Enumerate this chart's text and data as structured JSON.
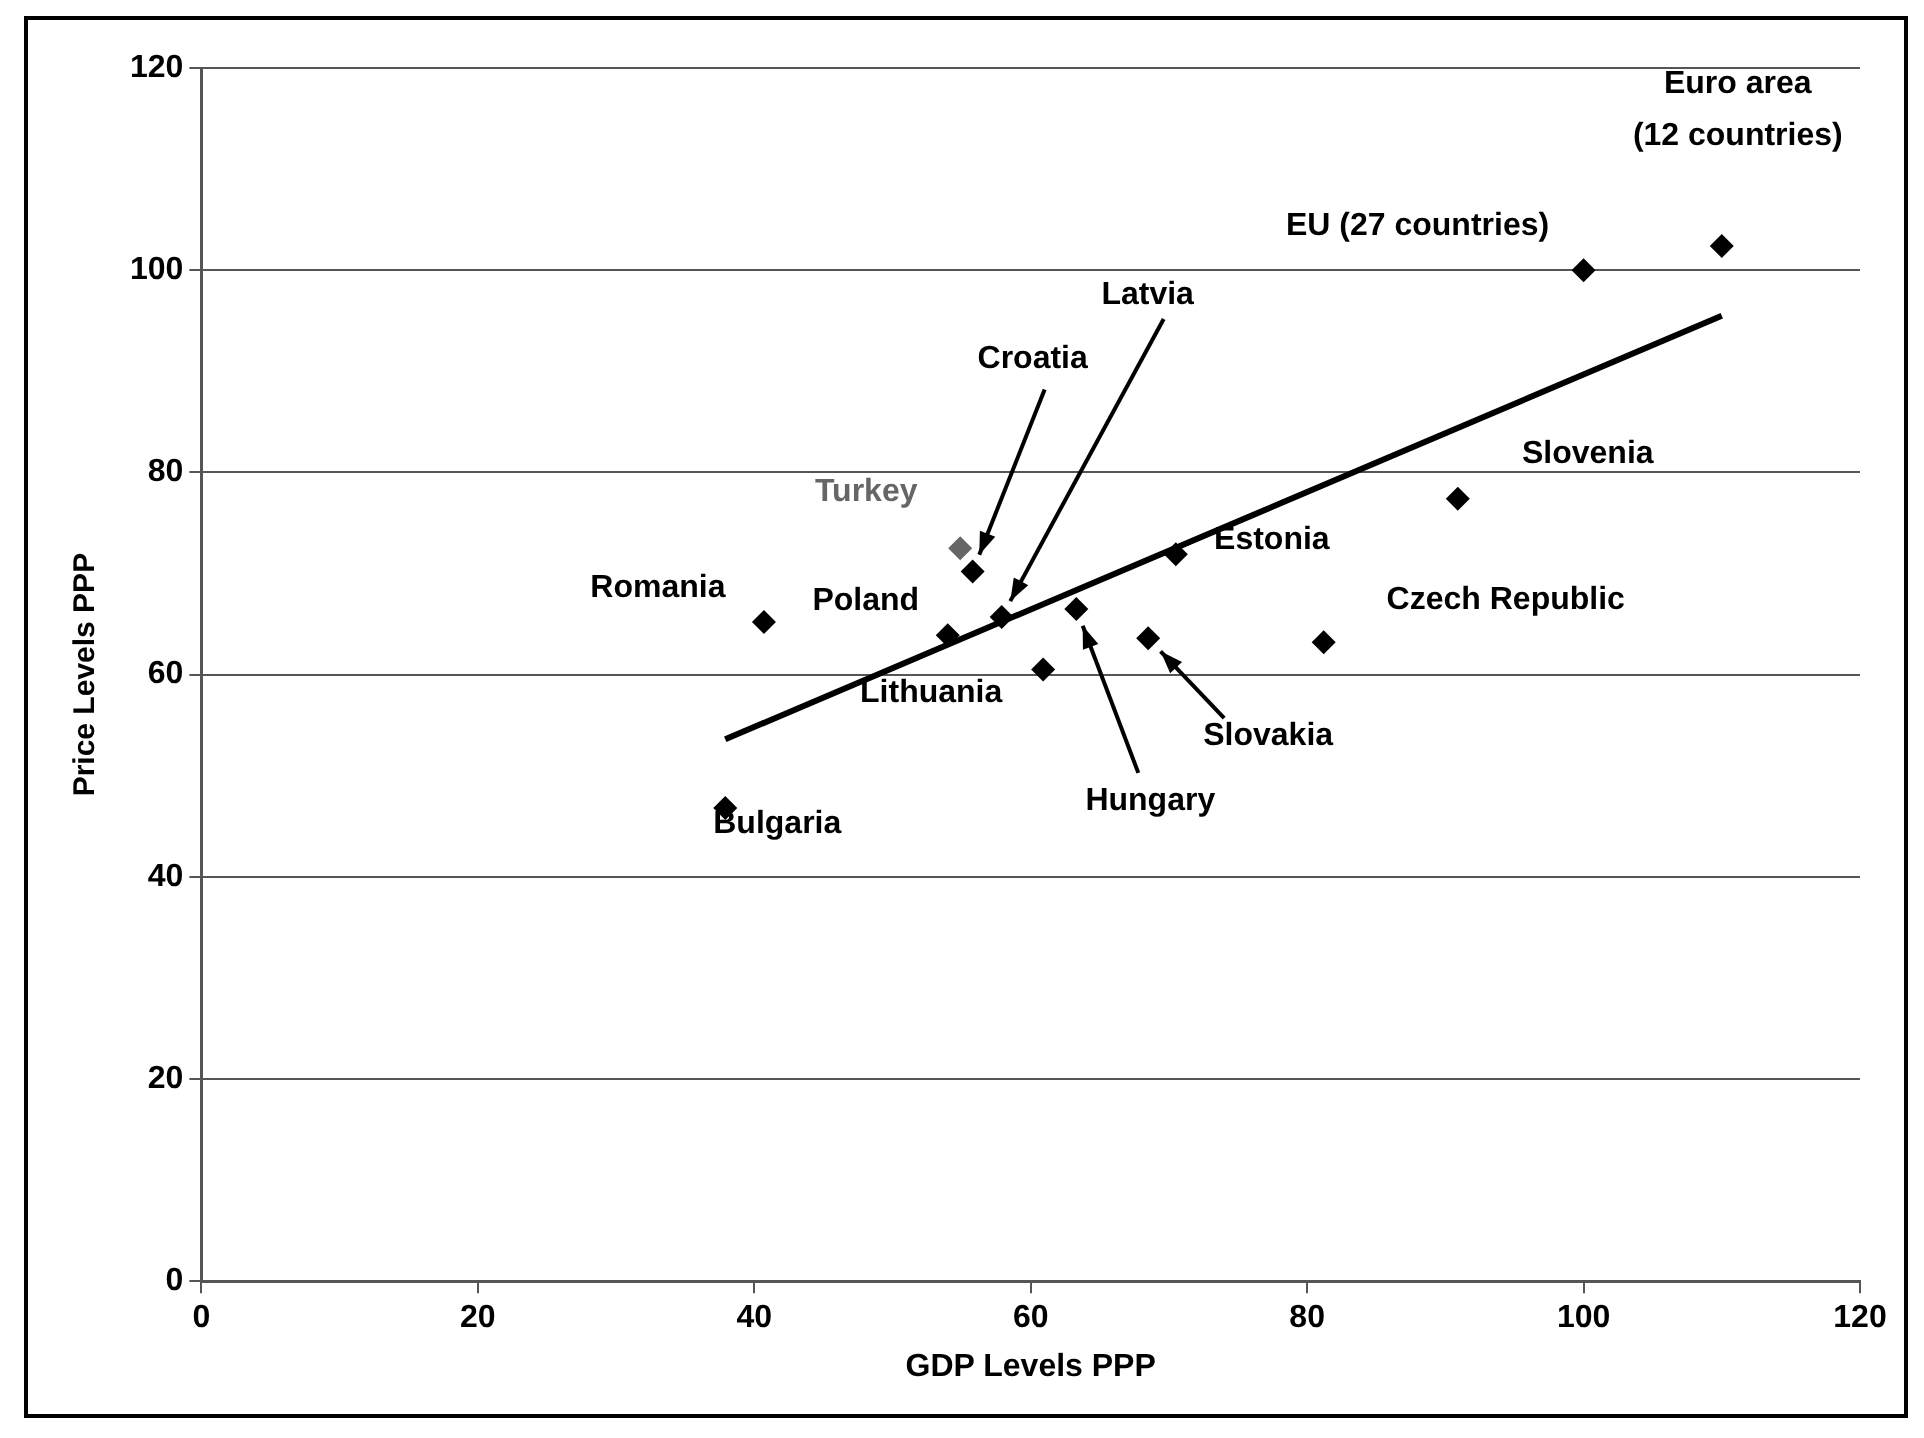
{
  "chart_data": {
    "type": "scatter",
    "xlabel": "GDP Levels PPP",
    "ylabel": "Price Levels PPP",
    "xlim": [
      0,
      120
    ],
    "xticks": [
      0,
      20,
      40,
      60,
      80,
      100,
      120
    ],
    "ylim": [
      0,
      120
    ],
    "yticks": [
      0,
      20,
      40,
      60,
      80,
      100,
      120
    ],
    "grid": "y",
    "legend": false,
    "marker": "diamond",
    "series": [
      {
        "color": "#000000",
        "x": [
          37.9,
          40.7,
          54,
          54.9,
          55.8,
          57.9,
          60.9,
          63.3,
          68.5,
          70.5,
          90.9,
          81.2,
          100,
          110
        ],
        "values": [
          46.8,
          65.2,
          63.9,
          72.5,
          70.2,
          65.7,
          60.5,
          66.5,
          63.6,
          71.9,
          77.4,
          63.2,
          100,
          102.4
        ],
        "colors": [
          "#000000",
          "#000000",
          "#000000",
          "#666666",
          "#000000",
          "#000000",
          "#000000",
          "#000000",
          "#000000",
          "#000000",
          "#000000",
          "#000000",
          "#000000",
          "#000000"
        ]
      },
      {
        "type": "line",
        "color": "#000000",
        "x": [
          37.9,
          110
        ],
        "values": [
          53.6,
          95.5
        ],
        "marker": "none"
      }
    ],
    "annotations": [
      {
        "text": "Bulgaria",
        "x": 37.9,
        "y": 46.8
      },
      {
        "text": "Romania",
        "x": 40.7,
        "y": 65.2
      },
      {
        "text": "Poland",
        "x": 54,
        "y": 63.9
      },
      {
        "text": "Turkey",
        "x": 54.9,
        "y": 72.5
      },
      {
        "text": "Croatia",
        "x": 55.8,
        "y": 70.2
      },
      {
        "text": "Latvia",
        "x": 57.9,
        "y": 65.7
      },
      {
        "text": "Lithuania",
        "x": 60.9,
        "y": 60.5
      },
      {
        "text": "Hungary",
        "x": 63.3,
        "y": 66.5
      },
      {
        "text": "Slovakia",
        "x": 68.5,
        "y": 63.6
      },
      {
        "text": "Estonia",
        "x": 70.5,
        "y": 71.9
      },
      {
        "text": "Slovenia",
        "x": 90.9,
        "y": 77.4
      },
      {
        "text": "Czech Republic",
        "x": 81.2,
        "y": 63.2
      },
      {
        "text": "EU (27 countries)",
        "x": 100,
        "y": 100
      },
      {
        "text": "Euro area\n(12 countries)",
        "x": 110,
        "y": 102.4
      }
    ]
  }
}
